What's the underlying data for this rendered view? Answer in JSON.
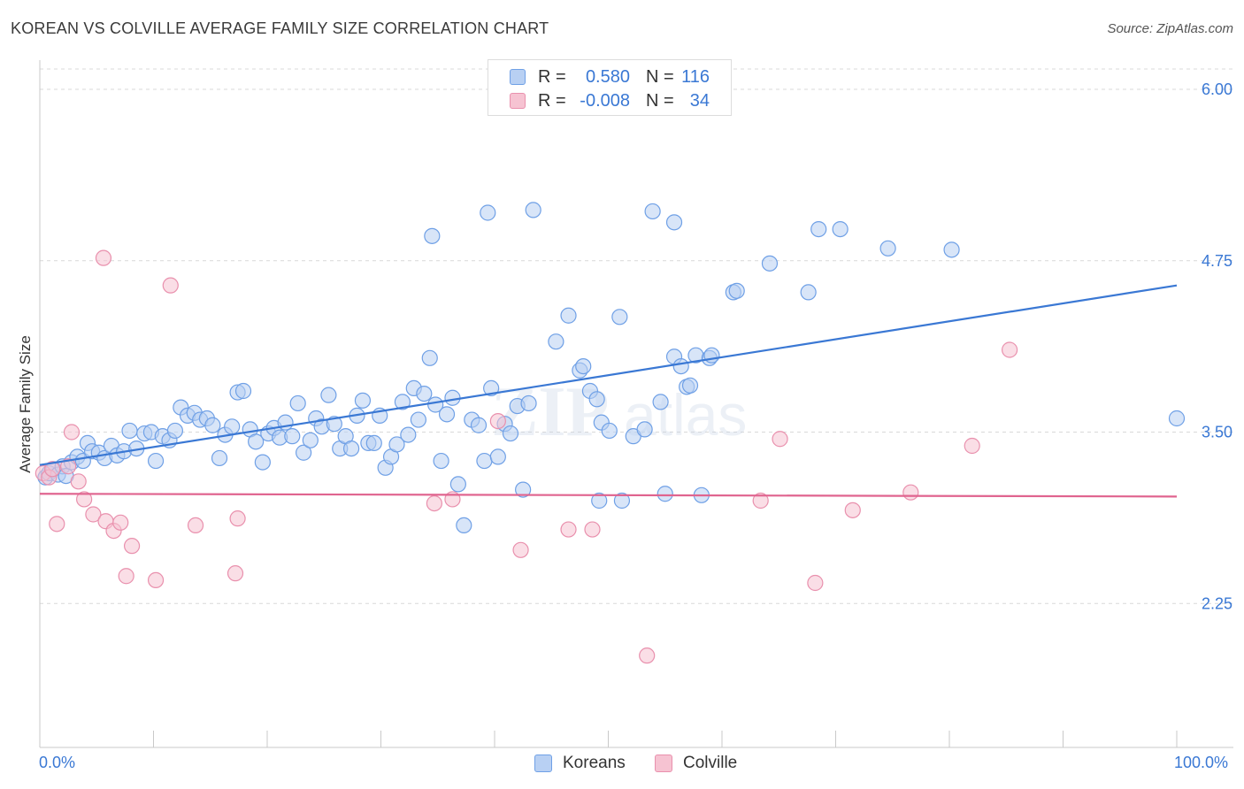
{
  "title": "KOREAN VS COLVILLE AVERAGE FAMILY SIZE CORRELATION CHART",
  "source": "Source: ZipAtlas.com",
  "legend_top": [
    {
      "r_label": "R =",
      "r_value": "0.580",
      "n_label": "N =",
      "n_value": "116",
      "color": "#6fa0e6",
      "fill": "#b8d0f3"
    },
    {
      "r_label": "R =",
      "r_value": "-0.008",
      "n_label": "N =",
      "n_value": "34",
      "color": "#e990ad",
      "fill": "#f6c3d2"
    }
  ],
  "legend_bottom": [
    {
      "label": "Koreans",
      "color": "#6fa0e6",
      "fill": "#b8d0f3"
    },
    {
      "label": "Colville",
      "color": "#e990ad",
      "fill": "#f6c3d2"
    }
  ],
  "x_tick_labels": {
    "left": "0.0%",
    "right": "100.0%"
  },
  "chart_data": {
    "type": "scatter",
    "title": "KOREAN VS COLVILLE AVERAGE FAMILY SIZE CORRELATION CHART",
    "xlabel": "",
    "ylabel": "Average Family Size",
    "xlim": [
      0,
      100
    ],
    "ylim": [
      1.2,
      6.2
    ],
    "y_ticks": [
      2.25,
      3.5,
      4.75,
      6.0
    ],
    "y_tick_labels": [
      "2.25",
      "3.50",
      "4.75",
      "6.00"
    ],
    "grid": true,
    "watermark": "ZIPatlas",
    "series": [
      {
        "name": "Koreans",
        "color": "#3a78d4",
        "fill": "#b8d0f3",
        "trend": {
          "x": [
            0,
            100
          ],
          "y": [
            3.26,
            4.57
          ]
        },
        "points": [
          [
            0.5,
            3.17
          ],
          [
            0.8,
            3.2
          ],
          [
            1.2,
            3.23
          ],
          [
            1.6,
            3.19
          ],
          [
            2.0,
            3.25
          ],
          [
            2.3,
            3.18
          ],
          [
            2.8,
            3.28
          ],
          [
            3.3,
            3.32
          ],
          [
            3.8,
            3.29
          ],
          [
            4.2,
            3.42
          ],
          [
            4.6,
            3.36
          ],
          [
            5.2,
            3.35
          ],
          [
            5.7,
            3.31
          ],
          [
            6.3,
            3.4
          ],
          [
            6.8,
            3.33
          ],
          [
            7.4,
            3.36
          ],
          [
            7.9,
            3.51
          ],
          [
            8.5,
            3.38
          ],
          [
            9.2,
            3.49
          ],
          [
            9.8,
            3.5
          ],
          [
            10.2,
            3.29
          ],
          [
            10.8,
            3.47
          ],
          [
            11.4,
            3.44
          ],
          [
            11.9,
            3.51
          ],
          [
            12.4,
            3.68
          ],
          [
            13.0,
            3.62
          ],
          [
            13.6,
            3.64
          ],
          [
            14.1,
            3.59
          ],
          [
            14.7,
            3.6
          ],
          [
            15.2,
            3.55
          ],
          [
            15.8,
            3.31
          ],
          [
            16.3,
            3.48
          ],
          [
            16.9,
            3.54
          ],
          [
            17.4,
            3.79
          ],
          [
            17.9,
            3.8
          ],
          [
            18.5,
            3.52
          ],
          [
            19.0,
            3.43
          ],
          [
            19.6,
            3.28
          ],
          [
            20.1,
            3.49
          ],
          [
            20.6,
            3.53
          ],
          [
            21.1,
            3.46
          ],
          [
            21.6,
            3.57
          ],
          [
            22.2,
            3.47
          ],
          [
            22.7,
            3.71
          ],
          [
            23.2,
            3.35
          ],
          [
            23.8,
            3.44
          ],
          [
            24.3,
            3.6
          ],
          [
            24.8,
            3.54
          ],
          [
            25.4,
            3.77
          ],
          [
            25.9,
            3.56
          ],
          [
            26.4,
            3.38
          ],
          [
            26.9,
            3.47
          ],
          [
            27.4,
            3.38
          ],
          [
            27.9,
            3.62
          ],
          [
            28.4,
            3.73
          ],
          [
            28.9,
            3.42
          ],
          [
            29.4,
            3.42
          ],
          [
            29.9,
            3.62
          ],
          [
            30.4,
            3.24
          ],
          [
            30.9,
            3.32
          ],
          [
            31.4,
            3.41
          ],
          [
            31.9,
            3.72
          ],
          [
            32.4,
            3.48
          ],
          [
            32.9,
            3.82
          ],
          [
            33.3,
            3.59
          ],
          [
            33.8,
            3.78
          ],
          [
            34.3,
            4.04
          ],
          [
            34.8,
            3.7
          ],
          [
            35.3,
            3.29
          ],
          [
            35.8,
            3.63
          ],
          [
            36.3,
            3.75
          ],
          [
            36.8,
            3.12
          ],
          [
            37.3,
            2.82
          ],
          [
            38.0,
            3.59
          ],
          [
            38.6,
            3.55
          ],
          [
            39.1,
            3.29
          ],
          [
            39.7,
            3.82
          ],
          [
            40.3,
            3.32
          ],
          [
            40.9,
            3.56
          ],
          [
            41.4,
            3.49
          ],
          [
            42.0,
            3.69
          ],
          [
            42.5,
            3.08
          ],
          [
            43.0,
            3.71
          ],
          [
            45.4,
            4.16
          ],
          [
            46.5,
            4.35
          ],
          [
            47.5,
            3.95
          ],
          [
            47.8,
            3.98
          ],
          [
            48.4,
            3.8
          ],
          [
            49.0,
            3.74
          ],
          [
            49.4,
            3.57
          ],
          [
            50.1,
            3.51
          ],
          [
            51.0,
            4.34
          ],
          [
            52.2,
            3.47
          ],
          [
            53.2,
            3.52
          ],
          [
            55.0,
            3.05
          ],
          [
            54.6,
            3.72
          ],
          [
            55.8,
            4.05
          ],
          [
            56.4,
            3.98
          ],
          [
            56.9,
            3.83
          ],
          [
            57.2,
            3.84
          ],
          [
            57.7,
            4.06
          ],
          [
            58.9,
            4.04
          ],
          [
            59.1,
            4.06
          ],
          [
            61.0,
            4.52
          ],
          [
            61.3,
            4.53
          ],
          [
            64.2,
            4.73
          ],
          [
            67.6,
            4.52
          ],
          [
            68.5,
            4.98
          ],
          [
            70.4,
            4.98
          ],
          [
            74.6,
            4.84
          ],
          [
            80.2,
            4.83
          ],
          [
            100.0,
            3.6
          ],
          [
            34.5,
            4.93
          ],
          [
            43.4,
            5.12
          ],
          [
            49.2,
            3.0
          ],
          [
            51.2,
            3.0
          ],
          [
            55.8,
            5.03
          ],
          [
            58.2,
            3.04
          ],
          [
            39.4,
            5.1
          ],
          [
            53.9,
            5.11
          ]
        ]
      },
      {
        "name": "Colville",
        "color": "#e0648f",
        "fill": "#f6c3d2",
        "trend": {
          "x": [
            0,
            100
          ],
          "y": [
            3.05,
            3.03
          ]
        },
        "points": [
          [
            0.3,
            3.2
          ],
          [
            0.8,
            3.17
          ],
          [
            1.5,
            2.83
          ],
          [
            2.8,
            3.5
          ],
          [
            3.4,
            3.14
          ],
          [
            3.9,
            3.01
          ],
          [
            4.7,
            2.9
          ],
          [
            5.6,
            4.77
          ],
          [
            5.8,
            2.85
          ],
          [
            6.5,
            2.78
          ],
          [
            7.1,
            2.84
          ],
          [
            7.6,
            2.45
          ],
          [
            8.1,
            2.67
          ],
          [
            10.2,
            2.42
          ],
          [
            11.5,
            4.57
          ],
          [
            13.7,
            2.82
          ],
          [
            17.4,
            2.87
          ],
          [
            17.2,
            2.47
          ],
          [
            34.7,
            2.98
          ],
          [
            36.3,
            3.01
          ],
          [
            40.3,
            3.58
          ],
          [
            42.3,
            2.64
          ],
          [
            46.5,
            2.79
          ],
          [
            48.6,
            2.79
          ],
          [
            53.4,
            1.87
          ],
          [
            63.4,
            3.0
          ],
          [
            65.1,
            3.45
          ],
          [
            68.2,
            2.4
          ],
          [
            71.5,
            2.93
          ],
          [
            76.6,
            3.06
          ],
          [
            82.0,
            3.4
          ],
          [
            85.3,
            4.1
          ],
          [
            1.1,
            3.23
          ],
          [
            2.5,
            3.25
          ]
        ]
      }
    ]
  }
}
